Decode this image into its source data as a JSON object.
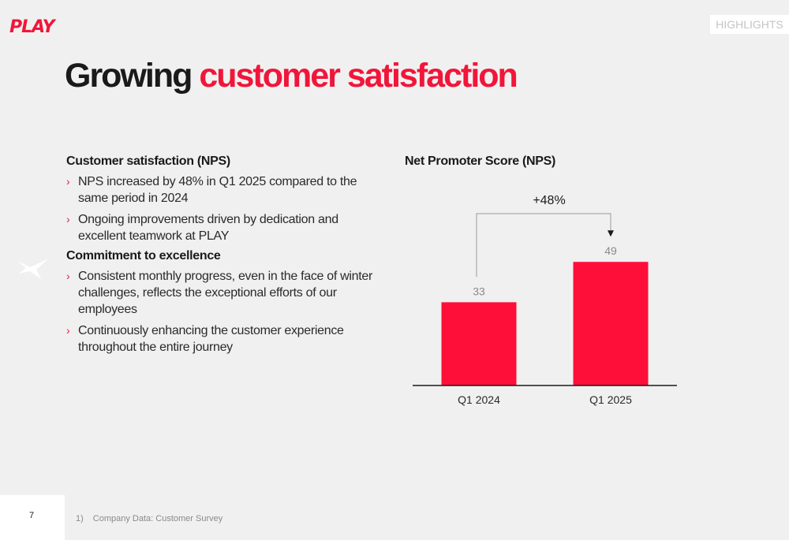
{
  "brand": {
    "logo_text": "PLAY",
    "accent_color": "#f0163a"
  },
  "section_tag": "HIGHLIGHTS",
  "title": {
    "main": "Growing",
    "accent": "customer satisfaction"
  },
  "left": {
    "sections": [
      {
        "heading": "Customer satisfaction (NPS)",
        "bullets": [
          "NPS increased by 48% in Q1 2025 compared to the same period in 2024",
          "Ongoing improvements driven by dedication and excellent teamwork at PLAY"
        ]
      },
      {
        "heading": "Commitment to excellence",
        "bullets": [
          "Consistent monthly progress, even in the face of winter challenges, reflects the exceptional efforts of our employees",
          "Continuously enhancing the customer experience throughout the entire journey"
        ]
      }
    ]
  },
  "chart_data": {
    "type": "bar",
    "title": "Net Promoter Score (NPS)",
    "categories": [
      "Q1 2024",
      "Q1 2025"
    ],
    "values": [
      33,
      49
    ],
    "ylim": [
      0,
      50
    ],
    "grid": false,
    "bar_color": "#fd0f3a",
    "annotation": {
      "text": "+48%",
      "from": "Q1 2024",
      "to": "Q1 2025"
    }
  },
  "footer": {
    "page_number": "7",
    "footnote_index": "1)",
    "footnote_text": "Company Data: Customer Survey"
  }
}
